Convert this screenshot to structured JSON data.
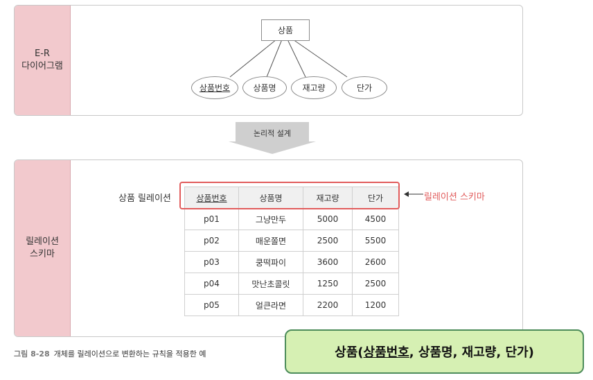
{
  "er_panel": {
    "label_lines": [
      "E-R",
      "다이어그램"
    ],
    "entity": "상품",
    "attributes": [
      {
        "name": "상품번호",
        "key": true
      },
      {
        "name": "상품명",
        "key": false
      },
      {
        "name": "재고량",
        "key": false
      },
      {
        "name": "단가",
        "key": false
      }
    ]
  },
  "arrow": {
    "label": "논리적 설계"
  },
  "relation_panel": {
    "label_lines": [
      "릴레이션",
      "스키마"
    ],
    "relation_title": "상품 릴레이션",
    "schema_label": "릴레이션 스키마",
    "columns": [
      {
        "name": "상품번호",
        "key": true
      },
      {
        "name": "상품명",
        "key": false
      },
      {
        "name": "재고량",
        "key": false
      },
      {
        "name": "단가",
        "key": false
      }
    ],
    "rows": [
      [
        "p01",
        "그냥만두",
        "5000",
        "4500"
      ],
      [
        "p02",
        "매운쫄면",
        "2500",
        "5500"
      ],
      [
        "p03",
        "쿵떡파이",
        "3600",
        "2600"
      ],
      [
        "p04",
        "맛난초콜릿",
        "1250",
        "2500"
      ],
      [
        "p05",
        "얼큰라면",
        "2200",
        "1200"
      ]
    ]
  },
  "caption": {
    "number": "그림 8-28",
    "text": "개체를 릴레이션으로 변환하는 규칙을 적용한 예"
  },
  "callout": {
    "prefix": "상품(",
    "key": "상품번호",
    "rest": ", 상품명, 재고량, 단가)"
  },
  "colors": {
    "label_bg": "#f2c9cd",
    "highlight": "#e15b5b",
    "callout_bg": "#d6f0b3",
    "callout_border": "#4c8c5a"
  }
}
